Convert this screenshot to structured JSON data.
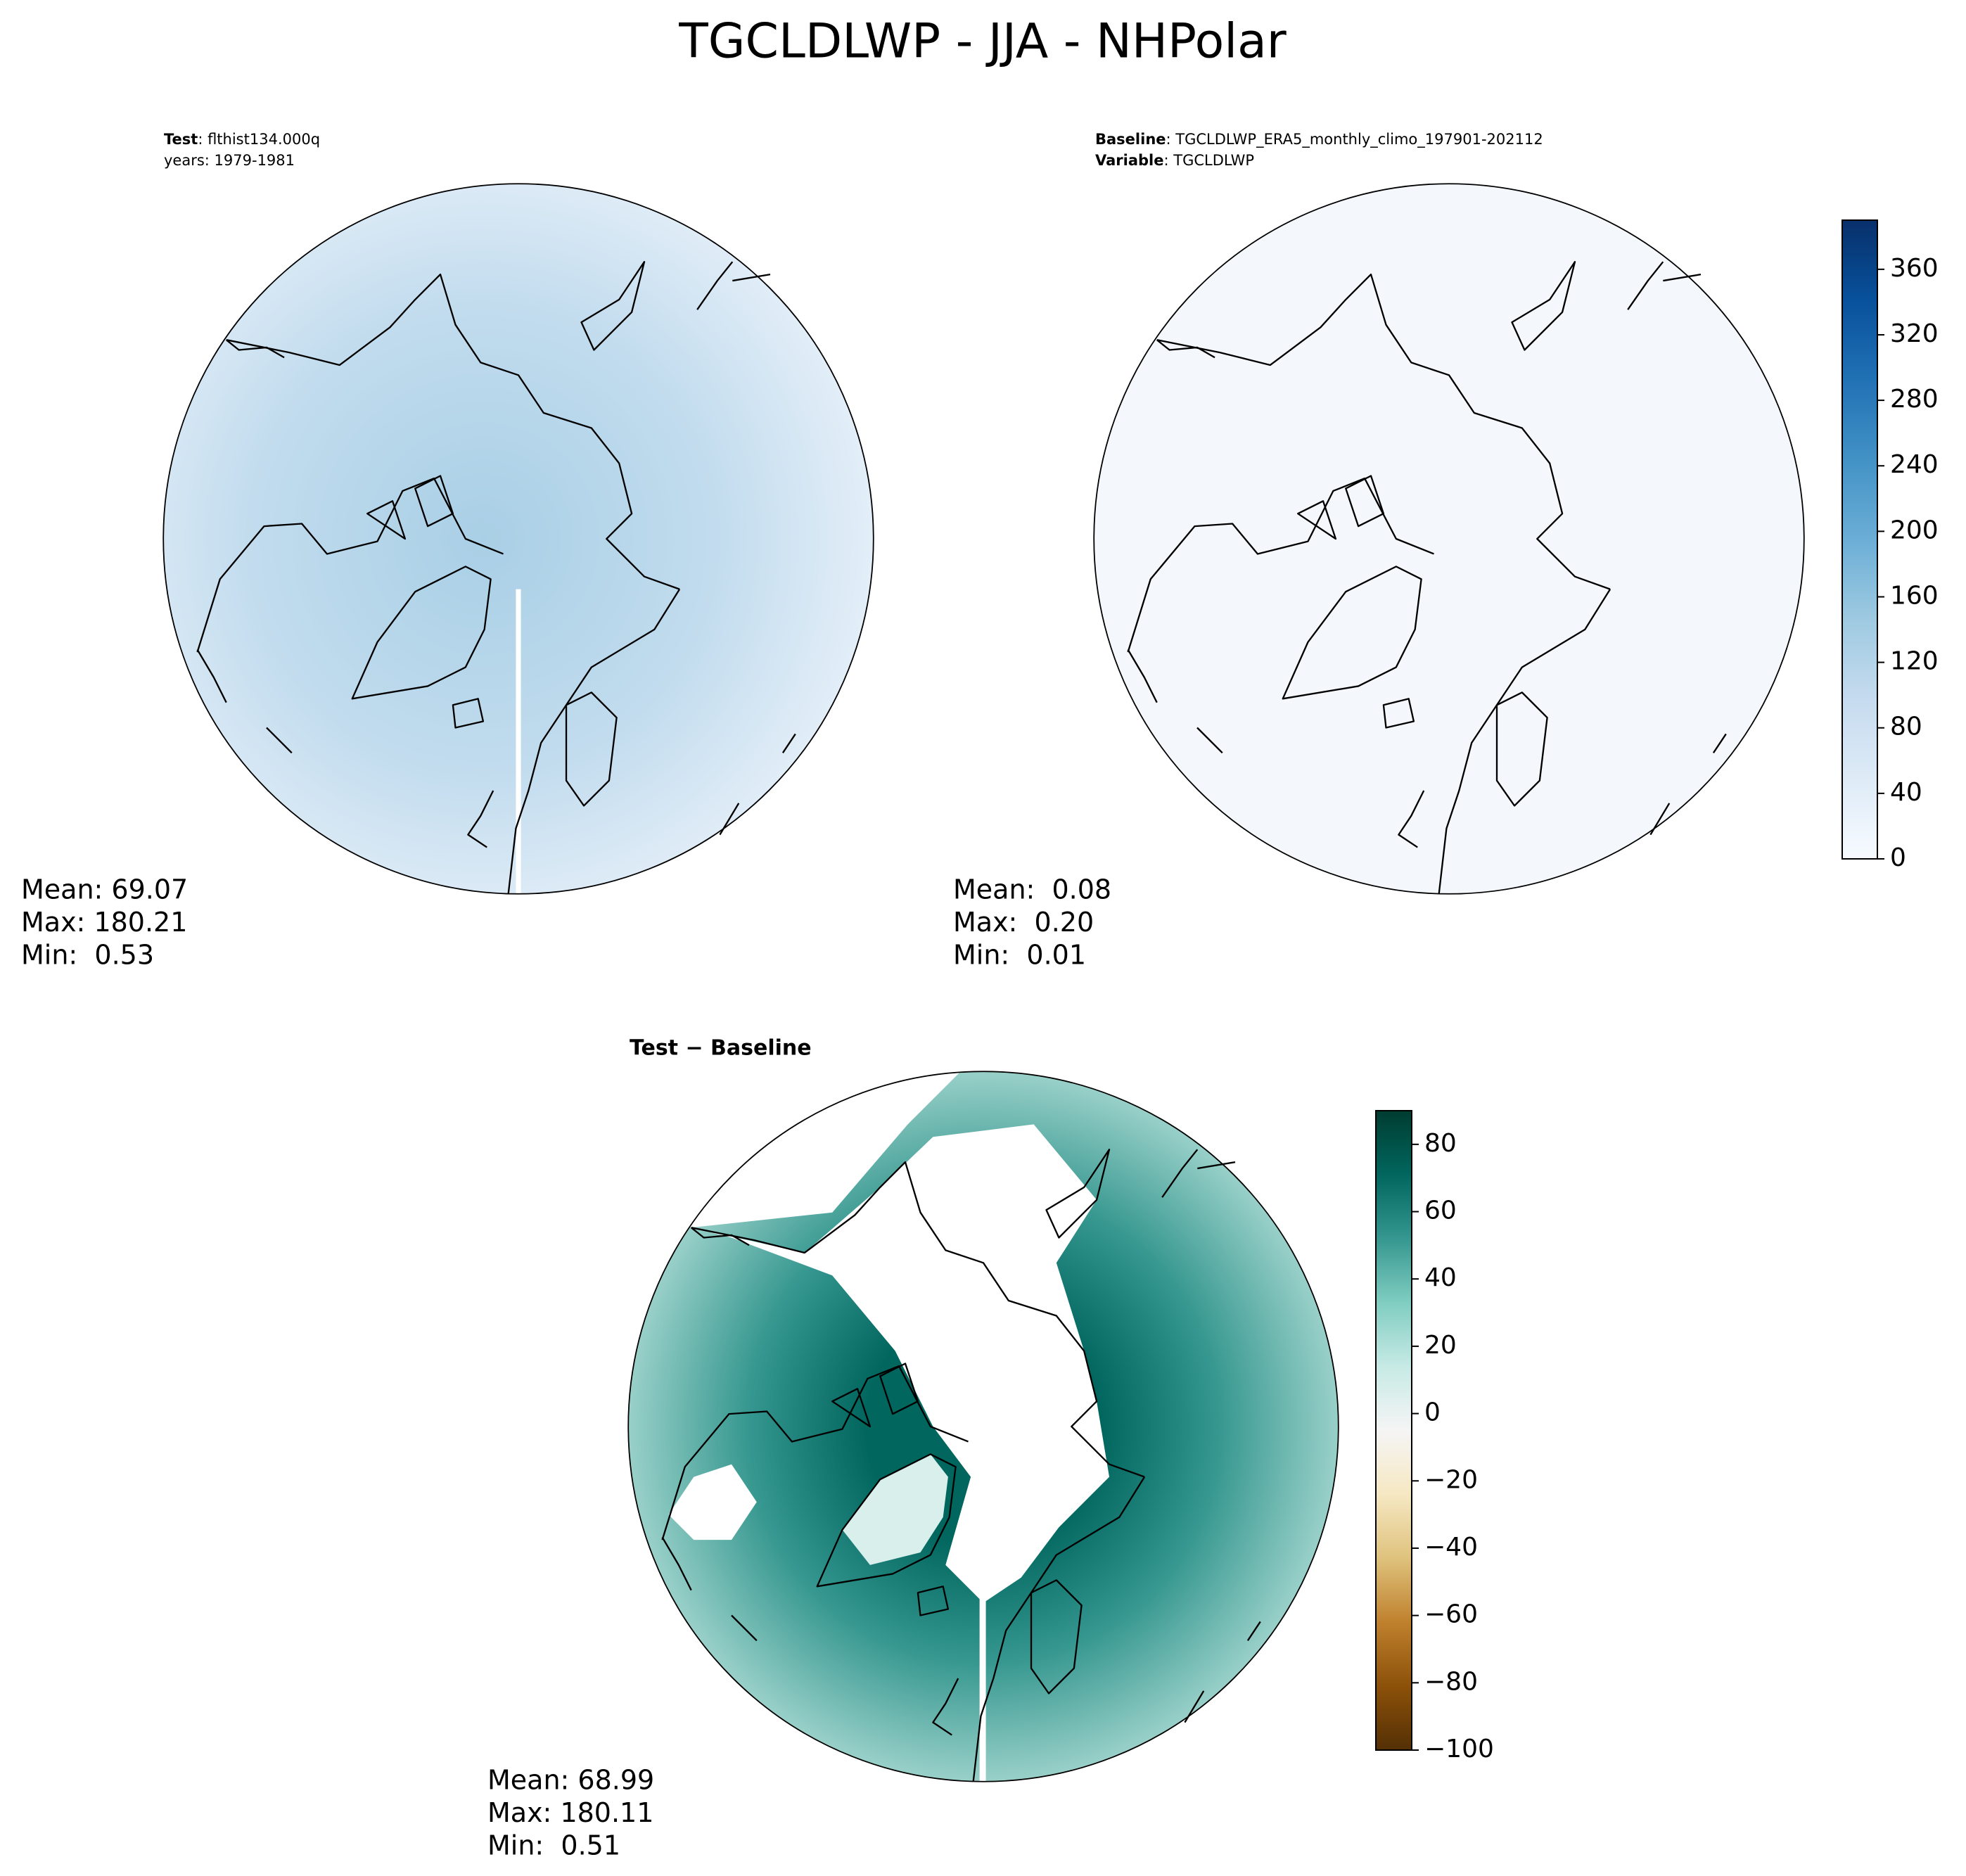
{
  "chart_data": {
    "type": "polar-maps",
    "title": "TGCLDLWP - JJA - NHPolar",
    "panels": [
      {
        "label": "Test",
        "text": ": flthist134.000q",
        "line2": "years: 1979-1981",
        "stats": [
          "Mean: 69.07",
          "Max: 180.21",
          "Min:  0.53"
        ]
      },
      {
        "label": "Baseline",
        "text": ": TGCLDLWP_ERA5_monthly_climo_197901-202112",
        "label2": "Variable",
        "text2": ": TGCLDLWP",
        "stats": [
          "Mean:  0.08",
          "Max:  0.20",
          "Min:  0.01"
        ]
      },
      {
        "title": "Test − Baseline",
        "stats": [
          "Mean: 68.99",
          "Max: 180.11",
          "Min:  0.51"
        ]
      }
    ],
    "colorbars": [
      {
        "clim": [
          0,
          390
        ],
        "ticks": [
          0,
          40,
          80,
          120,
          160,
          200,
          240,
          280,
          320,
          360
        ],
        "colors": [
          "#f7fbff",
          "#deebf7",
          "#c6dbef",
          "#9ecae1",
          "#6baed6",
          "#4292c6",
          "#2171b5",
          "#08519c",
          "#08306b"
        ]
      },
      {
        "clim": [
          -100,
          90
        ],
        "ticks": [
          {
            "value": -100,
            "label": "−100"
          },
          {
            "value": -80,
            "label": "−80"
          },
          {
            "value": -60,
            "label": "−60"
          },
          {
            "value": -40,
            "label": "−40"
          },
          {
            "value": -20,
            "label": "−20"
          },
          0,
          20,
          40,
          60,
          80
        ],
        "colors": [
          "#543005",
          "#8c510a",
          "#bf812d",
          "#dfc27d",
          "#f6e8c3",
          "#f5f5f5",
          "#c7eae5",
          "#80cdc1",
          "#35978f",
          "#01665e",
          "#003c30"
        ]
      }
    ]
  }
}
